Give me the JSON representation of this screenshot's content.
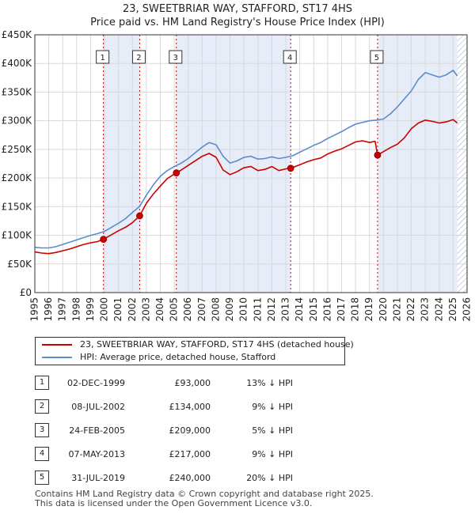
{
  "title": {
    "line1": "23, SWEETBRIAR WAY, STAFFORD, ST17 4HS",
    "line2": "Price paid vs. HM Land Registry's House Price Index (HPI)"
  },
  "colors": {
    "property": "#cc0000",
    "hpi": "#5a8ccf",
    "shade": "#e6ecf8",
    "marker_line": "#cc0000"
  },
  "legend": {
    "items": [
      {
        "label": "23, SWEETBRIAR WAY, STAFFORD, ST17 4HS (detached house)",
        "color": "#cc0000"
      },
      {
        "label": "HPI: Average price, detached house, Stafford",
        "color": "#5a8ccf"
      }
    ]
  },
  "sales": [
    {
      "num": "1",
      "date": "02-DEC-1999",
      "price": "£93,000",
      "hpi": "13% ↓ HPI"
    },
    {
      "num": "2",
      "date": "08-JUL-2002",
      "price": "£134,000",
      "hpi": "9% ↓ HPI"
    },
    {
      "num": "3",
      "date": "24-FEB-2005",
      "price": "£209,000",
      "hpi": "5% ↓ HPI"
    },
    {
      "num": "4",
      "date": "07-MAY-2013",
      "price": "£217,000",
      "hpi": "9% ↓ HPI"
    },
    {
      "num": "5",
      "date": "31-JUL-2019",
      "price": "£240,000",
      "hpi": "20% ↓ HPI"
    }
  ],
  "footer": {
    "line1": "Contains HM Land Registry data © Crown copyright and database right 2025.",
    "line2": "This data is licensed under the Open Government Licence v3.0."
  },
  "chart_data": {
    "type": "line",
    "title": "23, SWEETBRIAR WAY, STAFFORD, ST17 4HS — Price paid vs. HM Land Registry's House Price Index (HPI)",
    "xlabel": "",
    "ylabel": "",
    "xlim": [
      1995,
      2026
    ],
    "ylim": [
      0,
      450000
    ],
    "x_ticks": [
      1995,
      1996,
      1997,
      1998,
      1999,
      2000,
      2001,
      2002,
      2003,
      2004,
      2005,
      2006,
      2007,
      2008,
      2009,
      2010,
      2011,
      2012,
      2013,
      2014,
      2015,
      2016,
      2017,
      2018,
      2019,
      2020,
      2021,
      2022,
      2023,
      2024,
      2025,
      2026
    ],
    "y_ticks": [
      {
        "value": 0,
        "label": "£0"
      },
      {
        "value": 50000,
        "label": "£50K"
      },
      {
        "value": 100000,
        "label": "£100K"
      },
      {
        "value": 150000,
        "label": "£150K"
      },
      {
        "value": 200000,
        "label": "£200K"
      },
      {
        "value": 250000,
        "label": "£250K"
      },
      {
        "value": 300000,
        "label": "£300K"
      },
      {
        "value": 350000,
        "label": "£350K"
      },
      {
        "value": 400000,
        "label": "£400K"
      },
      {
        "value": 450000,
        "label": "£450K"
      }
    ],
    "grid": true,
    "shaded_ranges": [
      [
        1999.92,
        2002.52
      ],
      [
        2005.15,
        2013.35
      ],
      [
        2019.58,
        2025.3
      ]
    ],
    "hatched_from": 2025.3,
    "series": [
      {
        "name": "23, SWEETBRIAR WAY, STAFFORD, ST17 4HS (detached house)",
        "color": "#cc0000",
        "x": [
          1995.0,
          1995.5,
          1996.0,
          1996.5,
          1997.0,
          1997.5,
          1998.0,
          1998.5,
          1999.0,
          1999.5,
          1999.92,
          2000.5,
          2001.0,
          2001.5,
          2002.0,
          2002.52,
          2003.0,
          2003.5,
          2004.0,
          2004.5,
          2005.15,
          2005.5,
          2006.0,
          2006.5,
          2007.0,
          2007.5,
          2008.0,
          2008.5,
          2009.0,
          2009.5,
          2010.0,
          2010.5,
          2011.0,
          2011.5,
          2012.0,
          2012.5,
          2013.0,
          2013.35,
          2014.0,
          2014.5,
          2015.0,
          2015.5,
          2016.0,
          2016.5,
          2017.0,
          2017.5,
          2018.0,
          2018.5,
          2019.0,
          2019.4,
          2019.58,
          2020.0,
          2020.5,
          2021.0,
          2021.5,
          2022.0,
          2022.5,
          2023.0,
          2023.5,
          2024.0,
          2024.5,
          2025.0,
          2025.3
        ],
        "y": [
          71000,
          69000,
          68000,
          70000,
          73000,
          76000,
          80000,
          84000,
          87000,
          89000,
          93000,
          101000,
          108000,
          114000,
          122000,
          134000,
          156000,
          172000,
          186000,
          199000,
          209000,
          214000,
          222000,
          230000,
          238000,
          243000,
          236000,
          214000,
          206000,
          211000,
          218000,
          220000,
          213000,
          215000,
          220000,
          213000,
          216000,
          217000,
          223000,
          228000,
          232000,
          235000,
          242000,
          247000,
          251000,
          257000,
          263000,
          265000,
          262000,
          264000,
          240000,
          246000,
          253000,
          259000,
          270000,
          286000,
          296000,
          301000,
          299000,
          296000,
          298000,
          302000,
          296000
        ]
      },
      {
        "name": "HPI: Average price, detached house, Stafford",
        "color": "#5a8ccf",
        "x": [
          1995.0,
          1995.5,
          1996.0,
          1996.5,
          1997.0,
          1997.5,
          1998.0,
          1998.5,
          1999.0,
          1999.5,
          2000.0,
          2000.5,
          2001.0,
          2001.5,
          2002.0,
          2002.5,
          2003.0,
          2003.5,
          2004.0,
          2004.5,
          2005.0,
          2005.5,
          2006.0,
          2006.5,
          2007.0,
          2007.5,
          2008.0,
          2008.5,
          2009.0,
          2009.5,
          2010.0,
          2010.5,
          2011.0,
          2011.5,
          2012.0,
          2012.5,
          2013.0,
          2013.5,
          2014.0,
          2014.5,
          2015.0,
          2015.5,
          2016.0,
          2016.5,
          2017.0,
          2017.5,
          2018.0,
          2018.5,
          2019.0,
          2019.5,
          2020.0,
          2020.5,
          2021.0,
          2021.5,
          2022.0,
          2022.5,
          2023.0,
          2023.5,
          2024.0,
          2024.5,
          2025.0,
          2025.3
        ],
        "y": [
          79000,
          78000,
          78000,
          80000,
          84000,
          88000,
          92000,
          96000,
          100000,
          103000,
          107000,
          114000,
          121000,
          129000,
          140000,
          150000,
          170000,
          188000,
          203000,
          213000,
          220000,
          226000,
          234000,
          244000,
          254000,
          262000,
          258000,
          238000,
          226000,
          230000,
          236000,
          238000,
          233000,
          234000,
          237000,
          234000,
          236000,
          239000,
          245000,
          251000,
          257000,
          262000,
          269000,
          275000,
          281000,
          288000,
          294000,
          297000,
          300000,
          301000,
          303000,
          312000,
          324000,
          338000,
          352000,
          372000,
          384000,
          380000,
          376000,
          380000,
          388000,
          378000
        ]
      }
    ],
    "sale_markers": [
      {
        "label": "1",
        "x": 1999.92,
        "y": 93000
      },
      {
        "label": "2",
        "x": 2002.52,
        "y": 134000
      },
      {
        "label": "3",
        "x": 2005.15,
        "y": 209000
      },
      {
        "label": "4",
        "x": 2013.35,
        "y": 217000
      },
      {
        "label": "5",
        "x": 2019.58,
        "y": 240000
      }
    ]
  }
}
